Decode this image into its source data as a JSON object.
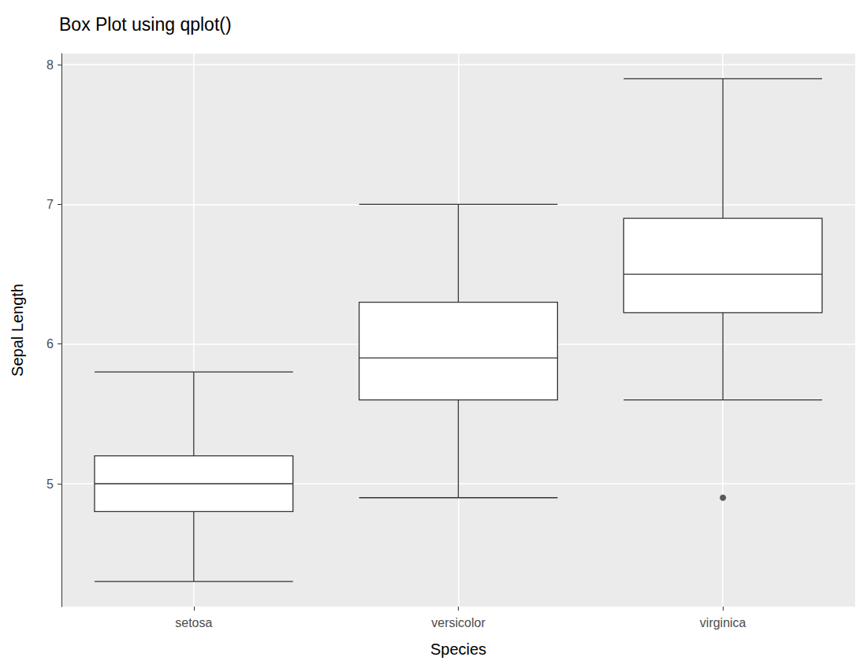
{
  "chart_data": {
    "type": "boxplot",
    "title": "Box Plot using qplot()",
    "x_label": "Species",
    "y_label": "Sepal Length",
    "categories": [
      "setosa",
      "versicolor",
      "virginica"
    ],
    "boxes": [
      [
        4.3,
        4.8,
        5.0,
        5.2,
        5.8
      ],
      [
        4.9,
        5.6,
        5.9,
        6.3,
        7.0
      ],
      [
        5.6,
        6.225,
        6.5,
        6.9,
        7.9
      ]
    ],
    "outliers": [
      [],
      [],
      [
        4.9
      ]
    ],
    "color": "#333333",
    "ylim": [
      4.12,
      8.08
    ],
    "yticks": [
      5,
      6,
      7,
      8
    ],
    "grid": true
  }
}
